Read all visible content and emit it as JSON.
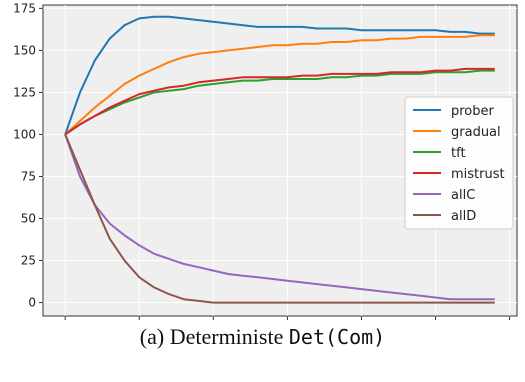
{
  "caption": {
    "prefix": "(a) Deterministe ",
    "code": "Det(Com)"
  },
  "chart_data": {
    "type": "line",
    "title": "",
    "xlabel": "",
    "ylabel": "",
    "xlim": [
      -1.5,
      30.5
    ],
    "ylim": [
      -8,
      177
    ],
    "xticks": [
      0,
      5,
      10,
      15,
      20,
      25,
      30
    ],
    "yticks": [
      0,
      25,
      50,
      75,
      100,
      125,
      150,
      175
    ],
    "grid": true,
    "legend_position": "center-right",
    "x": [
      0,
      1,
      2,
      3,
      4,
      5,
      6,
      7,
      8,
      9,
      10,
      11,
      12,
      13,
      14,
      15,
      16,
      17,
      18,
      19,
      20,
      21,
      22,
      23,
      24,
      25,
      26,
      27,
      28,
      29
    ],
    "series": [
      {
        "name": "prober",
        "color": "#1f77b4",
        "values": [
          100,
          125,
          144,
          157,
          165,
          169,
          170,
          170,
          169,
          168,
          167,
          166,
          165,
          164,
          164,
          164,
          164,
          163,
          163,
          163,
          162,
          162,
          162,
          162,
          162,
          162,
          161,
          161,
          160,
          160
        ]
      },
      {
        "name": "gradual",
        "color": "#ff7f0e",
        "values": [
          100,
          108,
          116,
          123,
          130,
          135,
          139,
          143,
          146,
          148,
          149,
          150,
          151,
          152,
          153,
          153,
          154,
          154,
          155,
          155,
          156,
          156,
          157,
          157,
          158,
          158,
          158,
          158,
          159,
          159
        ]
      },
      {
        "name": "tft",
        "color": "#2ca02c",
        "values": [
          100,
          106,
          111,
          115,
          119,
          122,
          125,
          126,
          127,
          129,
          130,
          131,
          132,
          132,
          133,
          133,
          133,
          133,
          134,
          134,
          135,
          135,
          136,
          136,
          136,
          137,
          137,
          137,
          138,
          138
        ]
      },
      {
        "name": "mistrust",
        "color": "#d62728",
        "values": [
          100,
          106,
          111,
          116,
          120,
          124,
          126,
          128,
          129,
          131,
          132,
          133,
          134,
          134,
          134,
          134,
          135,
          135,
          136,
          136,
          136,
          136,
          137,
          137,
          137,
          138,
          138,
          139,
          139,
          139
        ]
      },
      {
        "name": "allC",
        "color": "#9467bd",
        "values": [
          100,
          75,
          58,
          47,
          40,
          34,
          29,
          26,
          23,
          21,
          19,
          17,
          16,
          15,
          14,
          13,
          12,
          11,
          10,
          9,
          8,
          7,
          6,
          5,
          4,
          3,
          2,
          2,
          2,
          2
        ]
      },
      {
        "name": "allD",
        "color": "#8c564b",
        "values": [
          100,
          79,
          58,
          38,
          25,
          15,
          9,
          5,
          2,
          1,
          0,
          0,
          0,
          0,
          0,
          0,
          0,
          0,
          0,
          0,
          0,
          0,
          0,
          0,
          0,
          0,
          0,
          0,
          0,
          0
        ]
      }
    ]
  }
}
